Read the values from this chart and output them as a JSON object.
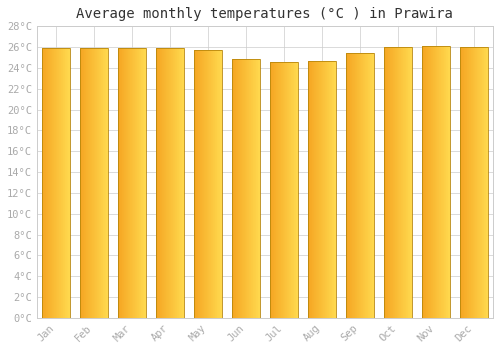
{
  "title": "Average monthly temperatures (°C ) in Prawira",
  "months": [
    "Jan",
    "Feb",
    "Mar",
    "Apr",
    "May",
    "Jun",
    "Jul",
    "Aug",
    "Sep",
    "Oct",
    "Nov",
    "Dec"
  ],
  "values": [
    25.9,
    25.9,
    25.9,
    25.9,
    25.7,
    24.9,
    24.6,
    24.7,
    25.4,
    26.0,
    26.1,
    26.0
  ],
  "bar_color_left": "#F5A623",
  "bar_color_right": "#FFD84D",
  "bar_edge_color": "#B8860B",
  "background_color": "#FFFFFF",
  "plot_bg_color": "#FFFFFF",
  "grid_color": "#CCCCCC",
  "ylim": [
    0,
    28
  ],
  "ytick_step": 2,
  "title_fontsize": 10,
  "tick_fontsize": 7.5,
  "tick_color": "#AAAAAA",
  "font_family": "monospace",
  "bar_width": 0.72,
  "spine_color": "#CCCCCC"
}
